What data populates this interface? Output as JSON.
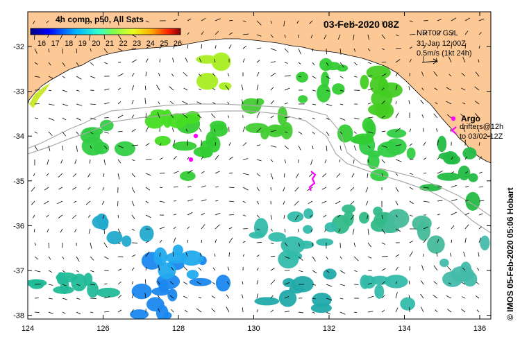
{
  "header": {
    "composite_label": "4h comp, p50, All Sats",
    "date_label": "03-Feb-2020 08Z"
  },
  "colorbar": {
    "ticks": [
      "16",
      "17",
      "18",
      "19",
      "20",
      "21",
      "22",
      "23",
      "24",
      "25",
      "26"
    ],
    "colors": [
      "#00007f",
      "#0000ff",
      "#0060ff",
      "#00c0ff",
      "#30ffd0",
      "#7fff7f",
      "#d0ff30",
      "#ffd000",
      "#ff6000",
      "#e00000",
      "#7f0000"
    ]
  },
  "current_info": {
    "model": "NRT00 GSL",
    "time": "31-Jan 12:00Z",
    "scale": "0.5m/s (1kt 24h)"
  },
  "argo": {
    "label": "Argo",
    "drifters_line1": "drifters@12h",
    "drifters_line2": "to 03/02-12Z",
    "color": "#ff00ff"
  },
  "credit": "© IMOS 05-Feb-2020 05:06 Hobart",
  "axes": {
    "x_ticks": [
      "124",
      "126",
      "128",
      "130",
      "132",
      "134",
      "136"
    ],
    "y_ticks": [
      "-32",
      "-33",
      "-34",
      "-35",
      "-36",
      "-37",
      "-38"
    ]
  },
  "colors": {
    "land": "#fcc896",
    "ocean": "#ffffff",
    "contour": "#aaaaaa"
  }
}
